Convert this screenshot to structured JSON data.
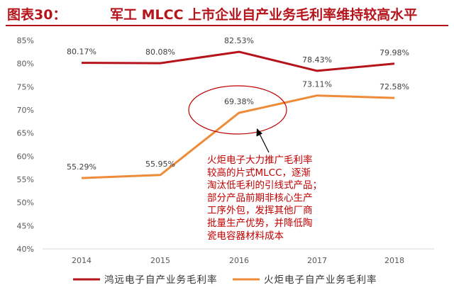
{
  "title": {
    "label": "图表30：",
    "text": "军工 MLCC 上市企业自产业务毛利率维持较高水平"
  },
  "chart_data": {
    "type": "line",
    "categories": [
      "2014",
      "2015",
      "2016",
      "2017",
      "2018"
    ],
    "ylim": [
      40,
      85
    ],
    "yticks": [
      "40%",
      "45%",
      "50%",
      "55%",
      "60%",
      "65%",
      "70%",
      "75%",
      "80%",
      "85%"
    ],
    "grid": false,
    "legend": "bottom",
    "series": [
      {
        "name": "鸿远电子自产业务毛利率",
        "color": "#b5141b",
        "values": [
          80.17,
          80.08,
          82.53,
          78.43,
          79.98
        ],
        "labels": [
          "80.17%",
          "80.08%",
          "82.53%",
          "78.43%",
          "79.98%"
        ]
      },
      {
        "name": "火炬电子自产业务毛利率",
        "color": "#ed8b38",
        "values": [
          55.29,
          55.95,
          69.38,
          73.11,
          72.58
        ],
        "labels": [
          "55.29%",
          "55.95%",
          "69.38%",
          "73.11%",
          "72.58%"
        ]
      }
    ],
    "annotation": {
      "color": "#c00000",
      "lines": [
        "火炬电子大力推广毛利率",
        "较高的片式MLCC，逐渐",
        "淘汰低毛利的引线式产品；",
        "部分产品前期非核心生产",
        "工序外包，发挥其他厂商",
        "批量生产优势，并降低陶",
        "瓷电容器材料成本"
      ]
    }
  }
}
